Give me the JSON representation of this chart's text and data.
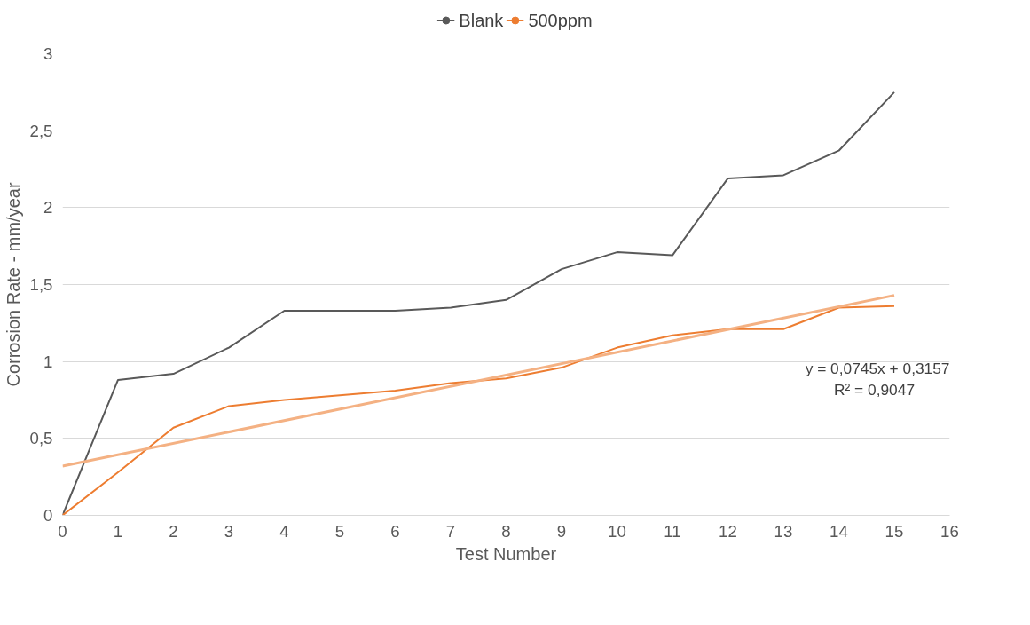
{
  "chart_data": {
    "type": "line",
    "xlabel": "Test Number",
    "ylabel": "Corrosion Rate - mm/year",
    "x": [
      0,
      1,
      2,
      3,
      4,
      5,
      6,
      7,
      8,
      9,
      10,
      11,
      12,
      13,
      14,
      15
    ],
    "series": [
      {
        "name": "Blank",
        "color": "#595959",
        "values": [
          0,
          0.88,
          0.92,
          1.09,
          1.33,
          1.33,
          1.33,
          1.35,
          1.4,
          1.6,
          1.71,
          1.69,
          2.19,
          2.21,
          2.37,
          2.75
        ]
      },
      {
        "name": "500ppm",
        "color": "#ed7d31",
        "values": [
          0,
          0.28,
          0.57,
          0.71,
          0.75,
          0.78,
          0.81,
          0.86,
          0.89,
          0.96,
          1.09,
          1.17,
          1.21,
          1.21,
          1.35,
          1.36
        ]
      },
      {
        "type": "line",
        "color": "#f4b183",
        "x": [
          0,
          15
        ],
        "values": [
          0.32,
          1.43
        ]
      }
    ],
    "annotations": [
      "y = 0,0745x + 0,3157",
      "R² = 0,9047"
    ],
    "xlim": [
      0,
      16
    ],
    "xticks": [
      0,
      1,
      2,
      3,
      4,
      5,
      6,
      7,
      8,
      9,
      10,
      11,
      12,
      13,
      14,
      15,
      16
    ],
    "ylim": [
      0,
      3
    ],
    "yticks": [
      0,
      {
        "value": 0.5,
        "label": "0,5"
      },
      1,
      {
        "value": 1.5,
        "label": "1,5"
      },
      2,
      {
        "value": 2.5,
        "label": "2,5"
      },
      3
    ],
    "grid": "y",
    "legend": "top"
  }
}
